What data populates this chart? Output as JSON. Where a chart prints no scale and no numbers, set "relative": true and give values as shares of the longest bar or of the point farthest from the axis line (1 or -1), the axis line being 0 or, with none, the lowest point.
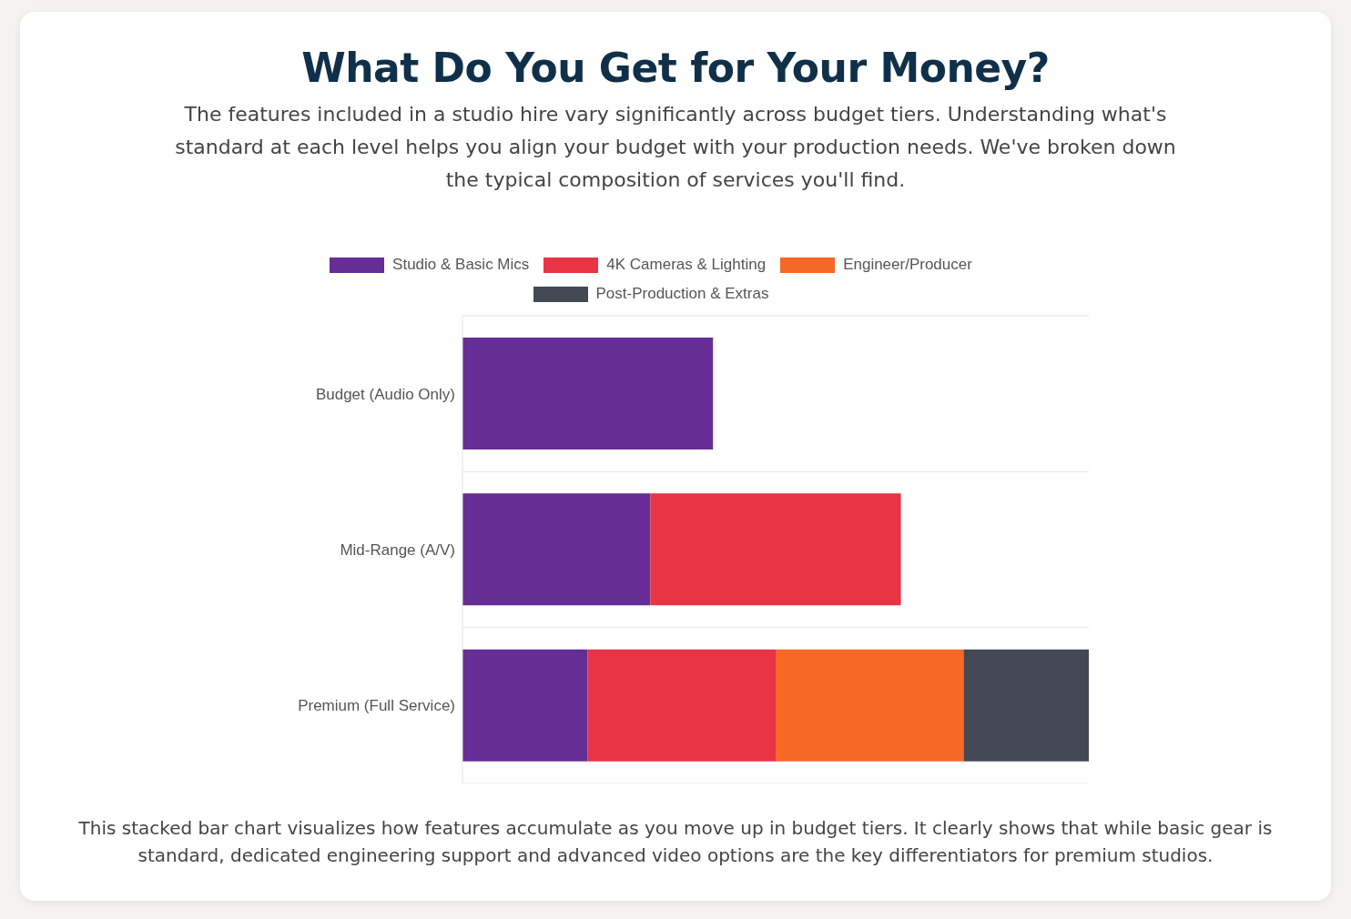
{
  "chart_data": {
    "type": "bar",
    "title": "What Do You Get for Your Money?",
    "subtitle": "The features included in a studio hire vary significantly across budget tiers. Understanding what's standard at each level helps you align your budget with your production needs. We've broken down the typical composition of services you'll find.",
    "annotations": [
      "This stacked bar chart visualizes how features accumulate as you move up in budget tiers. It clearly shows that while basic gear is standard, dedicated engineering support and advanced video options are the key differentiators for premium studios."
    ],
    "orientation": "horizontal",
    "stacked": true,
    "relative": true,
    "grid": "y",
    "legend": "top",
    "categories": [
      "Budget (Audio Only)",
      "Mid-Range (A/V)",
      "Premium (Full Service)"
    ],
    "series": [
      {
        "name": "Studio & Basic Mics",
        "color": "#662d96",
        "values": [
          0.4,
          0.3,
          0.2
        ]
      },
      {
        "name": "4K Cameras & Lighting",
        "color": "#e83445",
        "values": [
          null,
          0.4,
          0.3
        ]
      },
      {
        "name": "Engineer/Producer",
        "color": "#f76826",
        "values": [
          null,
          null,
          0.3
        ]
      },
      {
        "name": "Post-Production & Extras",
        "color": "#424953",
        "values": [
          null,
          null,
          0.2
        ]
      }
    ]
  }
}
